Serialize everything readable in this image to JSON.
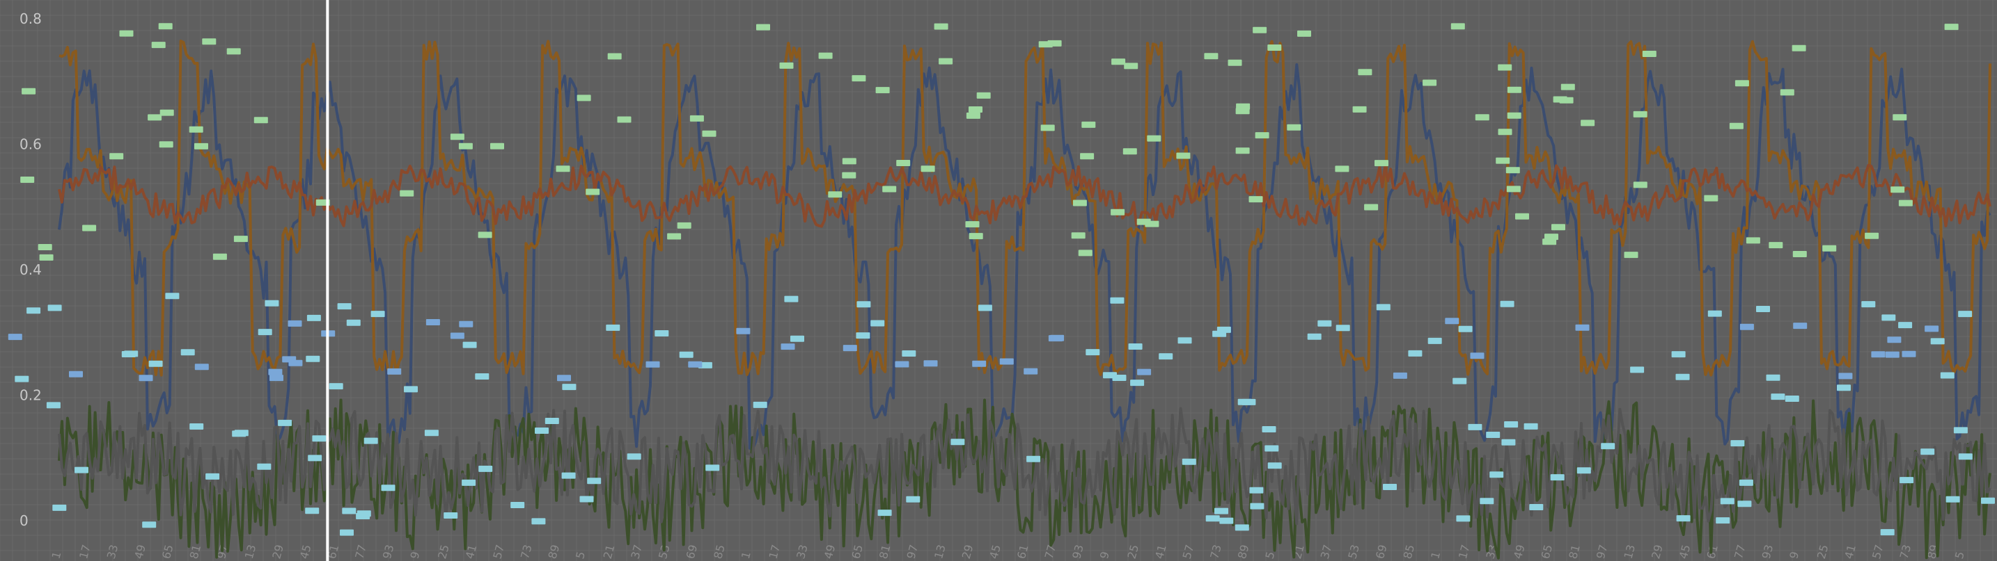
{
  "colors": {
    "background": "#5f5f5f",
    "grid": "#6a6a6a",
    "axis_label": "#c8c8c8",
    "cursor": "#ffffff",
    "navy": "#3b4d70",
    "orange": "#8a5a1e",
    "rust": "#8a4a2c",
    "dark_green": "#3c4f2b",
    "gray_line": "#545454",
    "light_green": "#9fd9a0",
    "cyan": "#8fd3e0",
    "blue": "#7aa7d8"
  },
  "chart_data": {
    "type": "line",
    "title": "",
    "xlabel": "",
    "ylabel": "",
    "ylim": [
      -0.05,
      0.82
    ],
    "yticks": [
      {
        "value": 0.8,
        "label": "0.8"
      },
      {
        "value": 0.6,
        "label": "0.6"
      },
      {
        "value": 0.4,
        "label": "0.4"
      },
      {
        "value": 0.2,
        "label": "0.2"
      },
      {
        "value": 0,
        "label": "0"
      }
    ],
    "grid": true,
    "legend": "none",
    "cursor_x": 0.164,
    "series": [
      {
        "key": "navy",
        "samples": 700,
        "kind": "dip",
        "center": 0.5,
        "amp": 0.26,
        "noise": 0.035
      },
      {
        "key": "orange",
        "samples": 700,
        "kind": "square",
        "center": 0.5,
        "amp": 0.26,
        "noise": 0.02
      },
      {
        "key": "rust",
        "samples": 700,
        "kind": "flat",
        "center": 0.52,
        "amp": 0.03,
        "noise": 0.02
      },
      {
        "key": "dark_green",
        "samples": 700,
        "kind": "noise",
        "center": 0.07,
        "amp": 0.08,
        "noise": 0.09
      },
      {
        "key": "gray_line",
        "samples": 700,
        "kind": "noise",
        "center": 0.09,
        "amp": 0.05,
        "noise": 0.07
      }
    ],
    "markers": [
      {
        "key": "light_green",
        "band": [
          0.42,
          0.79
        ],
        "count": 120
      },
      {
        "key": "cyan",
        "band": [
          -0.02,
          0.36
        ],
        "count": 140
      },
      {
        "key": "blue",
        "band": [
          0.22,
          0.32
        ],
        "count": 40
      }
    ],
    "x_tick_count": 70
  }
}
